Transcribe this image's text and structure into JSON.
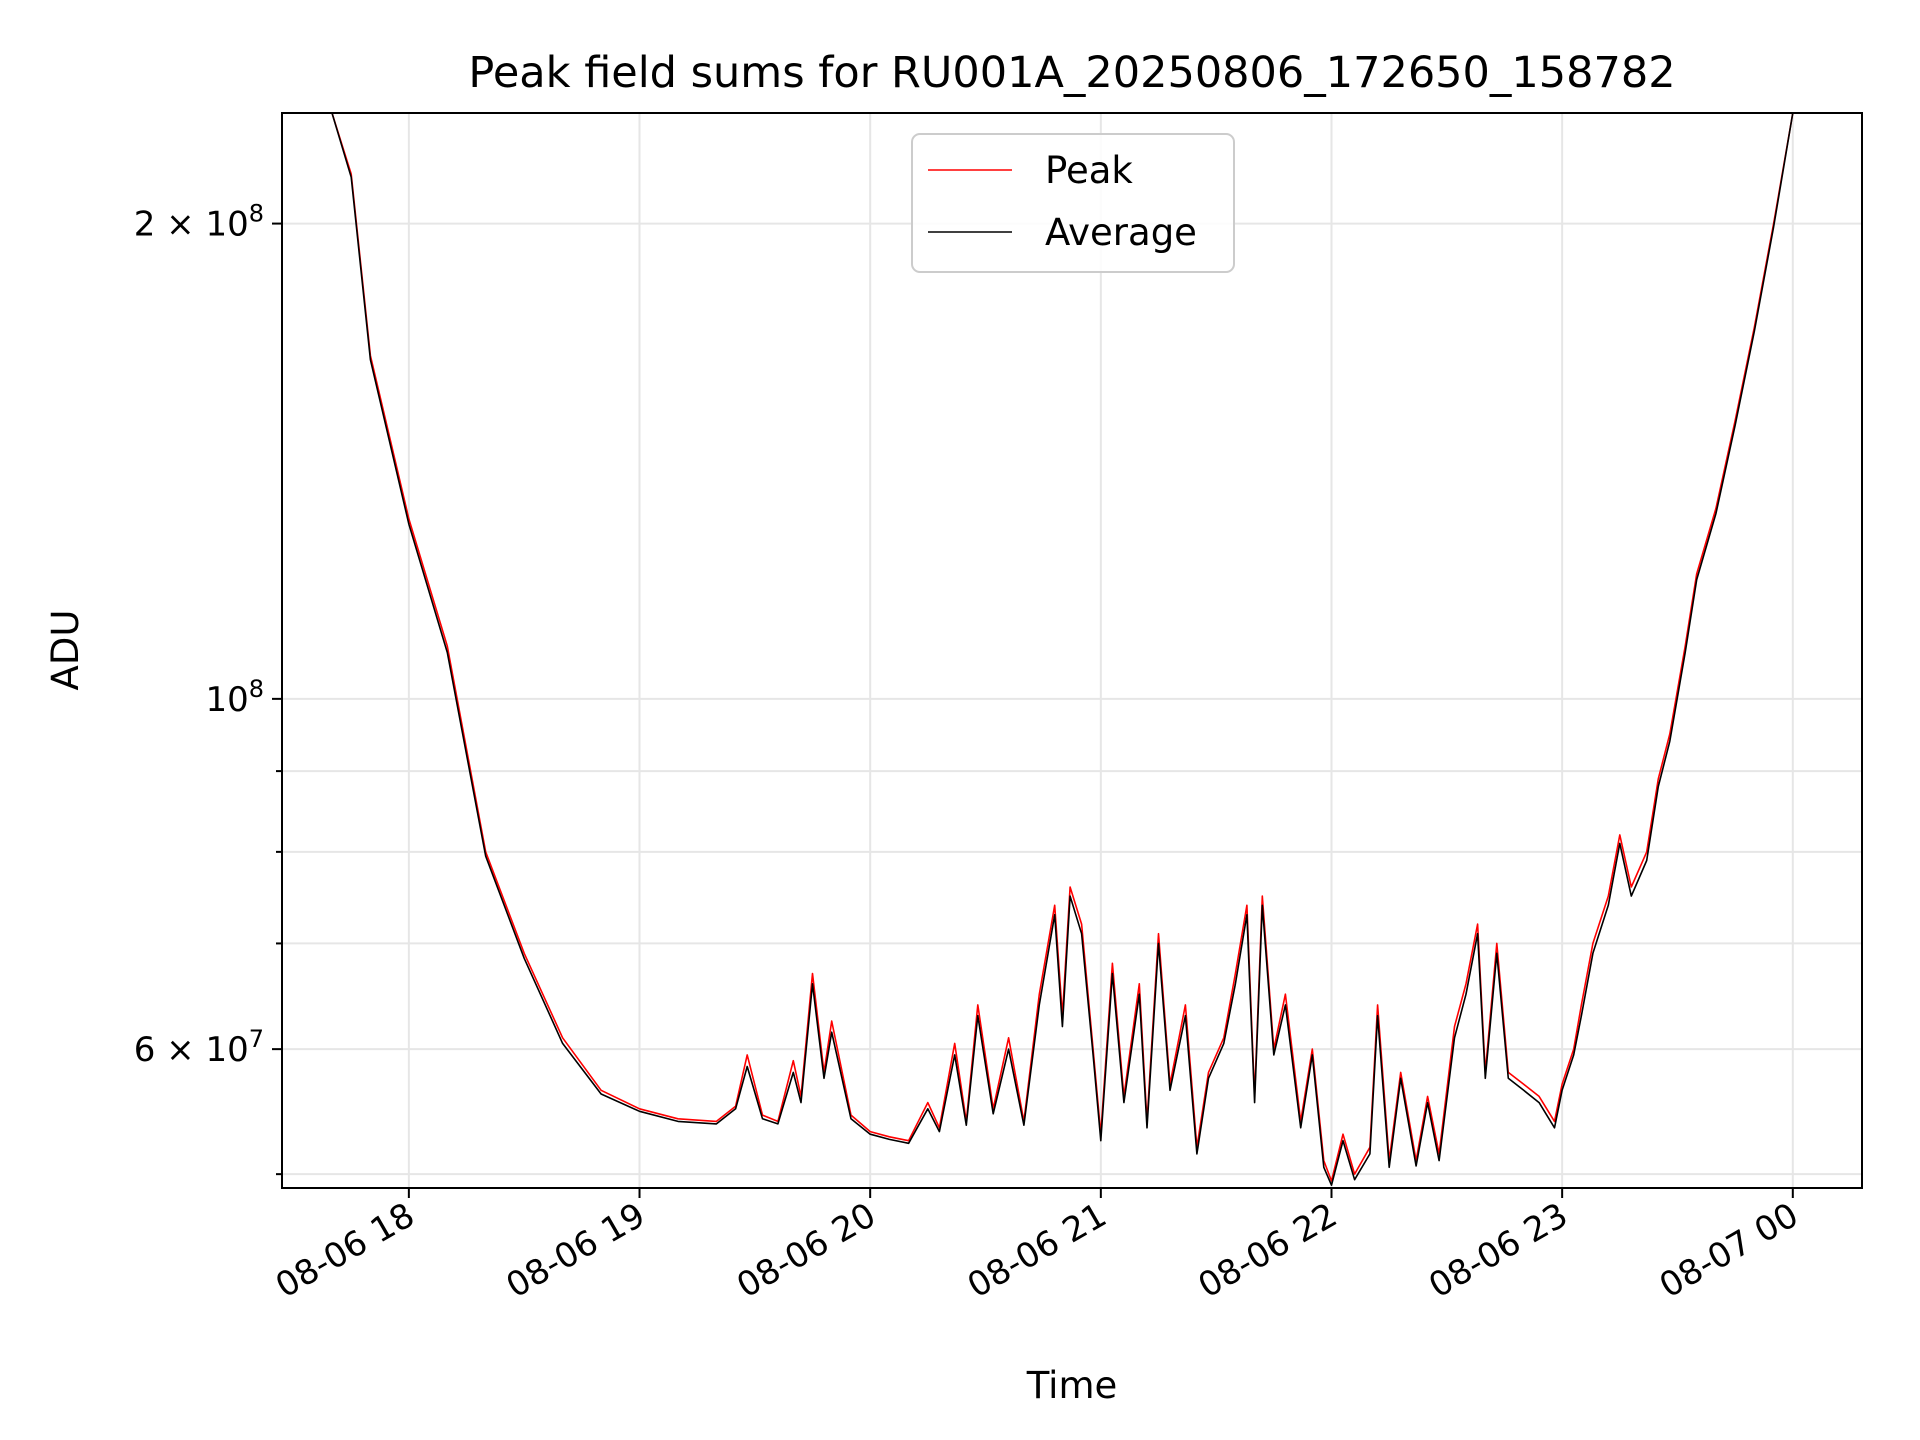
{
  "chart_data": {
    "type": "line",
    "title": "Peak field sums for RU001A_20250806_172650_158782",
    "xlabel": "Time",
    "ylabel": "ADU",
    "x_scale": "time",
    "y_scale": "log",
    "xlim": [
      "2025-08-06 17:27",
      "2025-08-07 00:18"
    ],
    "ylim": [
      49000000,
      235000000
    ],
    "grid": true,
    "legend_position": "top-center",
    "x_ticks": [
      {
        "value": "2025-08-06 18:00",
        "label": "08-06 18"
      },
      {
        "value": "2025-08-06 19:00",
        "label": "08-06 19"
      },
      {
        "value": "2025-08-06 20:00",
        "label": "08-06 20"
      },
      {
        "value": "2025-08-06 21:00",
        "label": "08-06 21"
      },
      {
        "value": "2025-08-06 22:00",
        "label": "08-06 22"
      },
      {
        "value": "2025-08-06 23:00",
        "label": "08-06 23"
      },
      {
        "value": "2025-08-07 00:00",
        "label": "08-07 00"
      }
    ],
    "y_major_ticks": [
      {
        "value": 60000000,
        "mantissa": "6",
        "exponent": "7"
      },
      {
        "value": 100000000,
        "mantissa": "",
        "exponent": "8"
      },
      {
        "value": 200000000,
        "mantissa": "2",
        "exponent": "8"
      }
    ],
    "y_minor_ticks": [
      50000000,
      70000000,
      80000000,
      90000000
    ],
    "series": [
      {
        "name": "Peak",
        "color": "#ff0000",
        "points": [
          [
            "2025-08-06 17:27",
            235000000
          ],
          [
            "2025-08-06 17:40",
            235000000
          ],
          [
            "2025-08-06 17:45",
            215000000
          ],
          [
            "2025-08-06 17:50",
            165000000
          ],
          [
            "2025-08-06 18:00",
            130000000
          ],
          [
            "2025-08-06 18:10",
            108000000
          ],
          [
            "2025-08-06 18:20",
            80000000
          ],
          [
            "2025-08-06 18:30",
            69000000
          ],
          [
            "2025-08-06 18:40",
            61000000
          ],
          [
            "2025-08-06 18:50",
            56500000
          ],
          [
            "2025-08-06 19:00",
            55000000
          ],
          [
            "2025-08-06 19:10",
            54200000
          ],
          [
            "2025-08-06 19:20",
            54000000
          ],
          [
            "2025-08-06 19:25",
            55200000
          ],
          [
            "2025-08-06 19:28",
            59500000
          ],
          [
            "2025-08-06 19:32",
            54500000
          ],
          [
            "2025-08-06 19:36",
            54000000
          ],
          [
            "2025-08-06 19:40",
            59000000
          ],
          [
            "2025-08-06 19:42",
            56000000
          ],
          [
            "2025-08-06 19:45",
            67000000
          ],
          [
            "2025-08-06 19:48",
            58000000
          ],
          [
            "2025-08-06 19:50",
            62500000
          ],
          [
            "2025-08-06 19:55",
            54500000
          ],
          [
            "2025-08-06 20:00",
            53200000
          ],
          [
            "2025-08-06 20:05",
            52800000
          ],
          [
            "2025-08-06 20:10",
            52500000
          ],
          [
            "2025-08-06 20:15",
            55500000
          ],
          [
            "2025-08-06 20:18",
            53500000
          ],
          [
            "2025-08-06 20:22",
            60500000
          ],
          [
            "2025-08-06 20:25",
            54000000
          ],
          [
            "2025-08-06 20:28",
            64000000
          ],
          [
            "2025-08-06 20:32",
            55000000
          ],
          [
            "2025-08-06 20:36",
            61000000
          ],
          [
            "2025-08-06 20:40",
            54000000
          ],
          [
            "2025-08-06 20:44",
            65000000
          ],
          [
            "2025-08-06 20:48",
            74000000
          ],
          [
            "2025-08-06 20:50",
            63000000
          ],
          [
            "2025-08-06 20:52",
            76000000
          ],
          [
            "2025-08-06 20:55",
            72000000
          ],
          [
            "2025-08-06 20:58",
            60000000
          ],
          [
            "2025-08-06 21:00",
            53000000
          ],
          [
            "2025-08-06 21:03",
            68000000
          ],
          [
            "2025-08-06 21:06",
            56000000
          ],
          [
            "2025-08-06 21:10",
            66000000
          ],
          [
            "2025-08-06 21:12",
            54000000
          ],
          [
            "2025-08-06 21:15",
            71000000
          ],
          [
            "2025-08-06 21:18",
            57000000
          ],
          [
            "2025-08-06 21:22",
            64000000
          ],
          [
            "2025-08-06 21:25",
            52000000
          ],
          [
            "2025-08-06 21:28",
            58000000
          ],
          [
            "2025-08-06 21:32",
            61000000
          ],
          [
            "2025-08-06 21:35",
            67000000
          ],
          [
            "2025-08-06 21:38",
            74000000
          ],
          [
            "2025-08-06 21:40",
            56000000
          ],
          [
            "2025-08-06 21:42",
            75000000
          ],
          [
            "2025-08-06 21:45",
            60000000
          ],
          [
            "2025-08-06 21:48",
            65000000
          ],
          [
            "2025-08-06 21:52",
            54000000
          ],
          [
            "2025-08-06 21:55",
            60000000
          ],
          [
            "2025-08-06 21:58",
            51000000
          ],
          [
            "2025-08-06 22:00",
            49500000
          ],
          [
            "2025-08-06 22:03",
            53000000
          ],
          [
            "2025-08-06 22:06",
            50000000
          ],
          [
            "2025-08-06 22:10",
            52000000
          ],
          [
            "2025-08-06 22:12",
            64000000
          ],
          [
            "2025-08-06 22:15",
            51000000
          ],
          [
            "2025-08-06 22:18",
            58000000
          ],
          [
            "2025-08-06 22:22",
            51000000
          ],
          [
            "2025-08-06 22:25",
            56000000
          ],
          [
            "2025-08-06 22:28",
            51500000
          ],
          [
            "2025-08-06 22:32",
            62000000
          ],
          [
            "2025-08-06 22:35",
            66000000
          ],
          [
            "2025-08-06 22:38",
            72000000
          ],
          [
            "2025-08-06 22:40",
            58000000
          ],
          [
            "2025-08-06 22:43",
            70000000
          ],
          [
            "2025-08-06 22:46",
            58000000
          ],
          [
            "2025-08-06 22:50",
            57000000
          ],
          [
            "2025-08-06 22:54",
            56000000
          ],
          [
            "2025-08-06 22:58",
            54000000
          ],
          [
            "2025-08-06 23:00",
            57000000
          ],
          [
            "2025-08-06 23:03",
            60000000
          ],
          [
            "2025-08-06 23:05",
            64000000
          ],
          [
            "2025-08-06 23:08",
            70000000
          ],
          [
            "2025-08-06 23:12",
            75000000
          ],
          [
            "2025-08-06 23:15",
            82000000
          ],
          [
            "2025-08-06 23:18",
            76000000
          ],
          [
            "2025-08-06 23:22",
            80000000
          ],
          [
            "2025-08-06 23:25",
            89000000
          ],
          [
            "2025-08-06 23:28",
            95000000
          ],
          [
            "2025-08-06 23:32",
            108000000
          ],
          [
            "2025-08-06 23:35",
            120000000
          ],
          [
            "2025-08-06 23:40",
            132000000
          ],
          [
            "2025-08-06 23:45",
            150000000
          ],
          [
            "2025-08-06 23:50",
            172000000
          ],
          [
            "2025-08-06 23:55",
            200000000
          ],
          [
            "2025-08-07 00:00",
            235000000
          ],
          [
            "2025-08-07 00:18",
            235000000
          ]
        ]
      },
      {
        "name": "Average",
        "color": "#000000",
        "points": [
          [
            "2025-08-06 17:27",
            235000000
          ],
          [
            "2025-08-06 17:40",
            235000000
          ],
          [
            "2025-08-06 17:45",
            214000000
          ],
          [
            "2025-08-06 17:50",
            164000000
          ],
          [
            "2025-08-06 18:00",
            129000000
          ],
          [
            "2025-08-06 18:10",
            107000000
          ],
          [
            "2025-08-06 18:20",
            79500000
          ],
          [
            "2025-08-06 18:30",
            68500000
          ],
          [
            "2025-08-06 18:40",
            60500000
          ],
          [
            "2025-08-06 18:50",
            56200000
          ],
          [
            "2025-08-06 19:00",
            54800000
          ],
          [
            "2025-08-06 19:10",
            54000000
          ],
          [
            "2025-08-06 19:20",
            53800000
          ],
          [
            "2025-08-06 19:25",
            55000000
          ],
          [
            "2025-08-06 19:28",
            58500000
          ],
          [
            "2025-08-06 19:32",
            54200000
          ],
          [
            "2025-08-06 19:36",
            53800000
          ],
          [
            "2025-08-06 19:40",
            58000000
          ],
          [
            "2025-08-06 19:42",
            55500000
          ],
          [
            "2025-08-06 19:45",
            66000000
          ],
          [
            "2025-08-06 19:48",
            57500000
          ],
          [
            "2025-08-06 19:50",
            61500000
          ],
          [
            "2025-08-06 19:55",
            54200000
          ],
          [
            "2025-08-06 20:00",
            53000000
          ],
          [
            "2025-08-06 20:05",
            52600000
          ],
          [
            "2025-08-06 20:10",
            52300000
          ],
          [
            "2025-08-06 20:15",
            55000000
          ],
          [
            "2025-08-06 20:18",
            53200000
          ],
          [
            "2025-08-06 20:22",
            59500000
          ],
          [
            "2025-08-06 20:25",
            53700000
          ],
          [
            "2025-08-06 20:28",
            63000000
          ],
          [
            "2025-08-06 20:32",
            54600000
          ],
          [
            "2025-08-06 20:36",
            60000000
          ],
          [
            "2025-08-06 20:40",
            53700000
          ],
          [
            "2025-08-06 20:44",
            64000000
          ],
          [
            "2025-08-06 20:48",
            73000000
          ],
          [
            "2025-08-06 20:50",
            62000000
          ],
          [
            "2025-08-06 20:52",
            75000000
          ],
          [
            "2025-08-06 20:55",
            71000000
          ],
          [
            "2025-08-06 20:58",
            59500000
          ],
          [
            "2025-08-06 21:00",
            52500000
          ],
          [
            "2025-08-06 21:03",
            67000000
          ],
          [
            "2025-08-06 21:06",
            55500000
          ],
          [
            "2025-08-06 21:10",
            65000000
          ],
          [
            "2025-08-06 21:12",
            53500000
          ],
          [
            "2025-08-06 21:15",
            70000000
          ],
          [
            "2025-08-06 21:18",
            56500000
          ],
          [
            "2025-08-06 21:22",
            63000000
          ],
          [
            "2025-08-06 21:25",
            51500000
          ],
          [
            "2025-08-06 21:28",
            57500000
          ],
          [
            "2025-08-06 21:32",
            60500000
          ],
          [
            "2025-08-06 21:35",
            66000000
          ],
          [
            "2025-08-06 21:38",
            73000000
          ],
          [
            "2025-08-06 21:40",
            55500000
          ],
          [
            "2025-08-06 21:42",
            74000000
          ],
          [
            "2025-08-06 21:45",
            59500000
          ],
          [
            "2025-08-06 21:48",
            64000000
          ],
          [
            "2025-08-06 21:52",
            53500000
          ],
          [
            "2025-08-06 21:55",
            59500000
          ],
          [
            "2025-08-06 21:58",
            50500000
          ],
          [
            "2025-08-06 22:00",
            49200000
          ],
          [
            "2025-08-06 22:03",
            52500000
          ],
          [
            "2025-08-06 22:06",
            49600000
          ],
          [
            "2025-08-06 22:10",
            51500000
          ],
          [
            "2025-08-06 22:12",
            63000000
          ],
          [
            "2025-08-06 22:15",
            50500000
          ],
          [
            "2025-08-06 22:18",
            57500000
          ],
          [
            "2025-08-06 22:22",
            50600000
          ],
          [
            "2025-08-06 22:25",
            55500000
          ],
          [
            "2025-08-06 22:28",
            51000000
          ],
          [
            "2025-08-06 22:32",
            61000000
          ],
          [
            "2025-08-06 22:35",
            65000000
          ],
          [
            "2025-08-06 22:38",
            71000000
          ],
          [
            "2025-08-06 22:40",
            57500000
          ],
          [
            "2025-08-06 22:43",
            69000000
          ],
          [
            "2025-08-06 22:46",
            57500000
          ],
          [
            "2025-08-06 22:50",
            56500000
          ],
          [
            "2025-08-06 22:54",
            55500000
          ],
          [
            "2025-08-06 22:58",
            53500000
          ],
          [
            "2025-08-06 23:00",
            56500000
          ],
          [
            "2025-08-06 23:03",
            59500000
          ],
          [
            "2025-08-06 23:05",
            63000000
          ],
          [
            "2025-08-06 23:08",
            69000000
          ],
          [
            "2025-08-06 23:12",
            74000000
          ],
          [
            "2025-08-06 23:15",
            81000000
          ],
          [
            "2025-08-06 23:18",
            75000000
          ],
          [
            "2025-08-06 23:22",
            79000000
          ],
          [
            "2025-08-06 23:25",
            88000000
          ],
          [
            "2025-08-06 23:28",
            94000000
          ],
          [
            "2025-08-06 23:32",
            107000000
          ],
          [
            "2025-08-06 23:35",
            119000000
          ],
          [
            "2025-08-06 23:40",
            131000000
          ],
          [
            "2025-08-06 23:45",
            149000000
          ],
          [
            "2025-08-06 23:50",
            171000000
          ],
          [
            "2025-08-06 23:55",
            199000000
          ],
          [
            "2025-08-07 00:00",
            235000000
          ],
          [
            "2025-08-07 00:18",
            235000000
          ]
        ]
      }
    ]
  }
}
